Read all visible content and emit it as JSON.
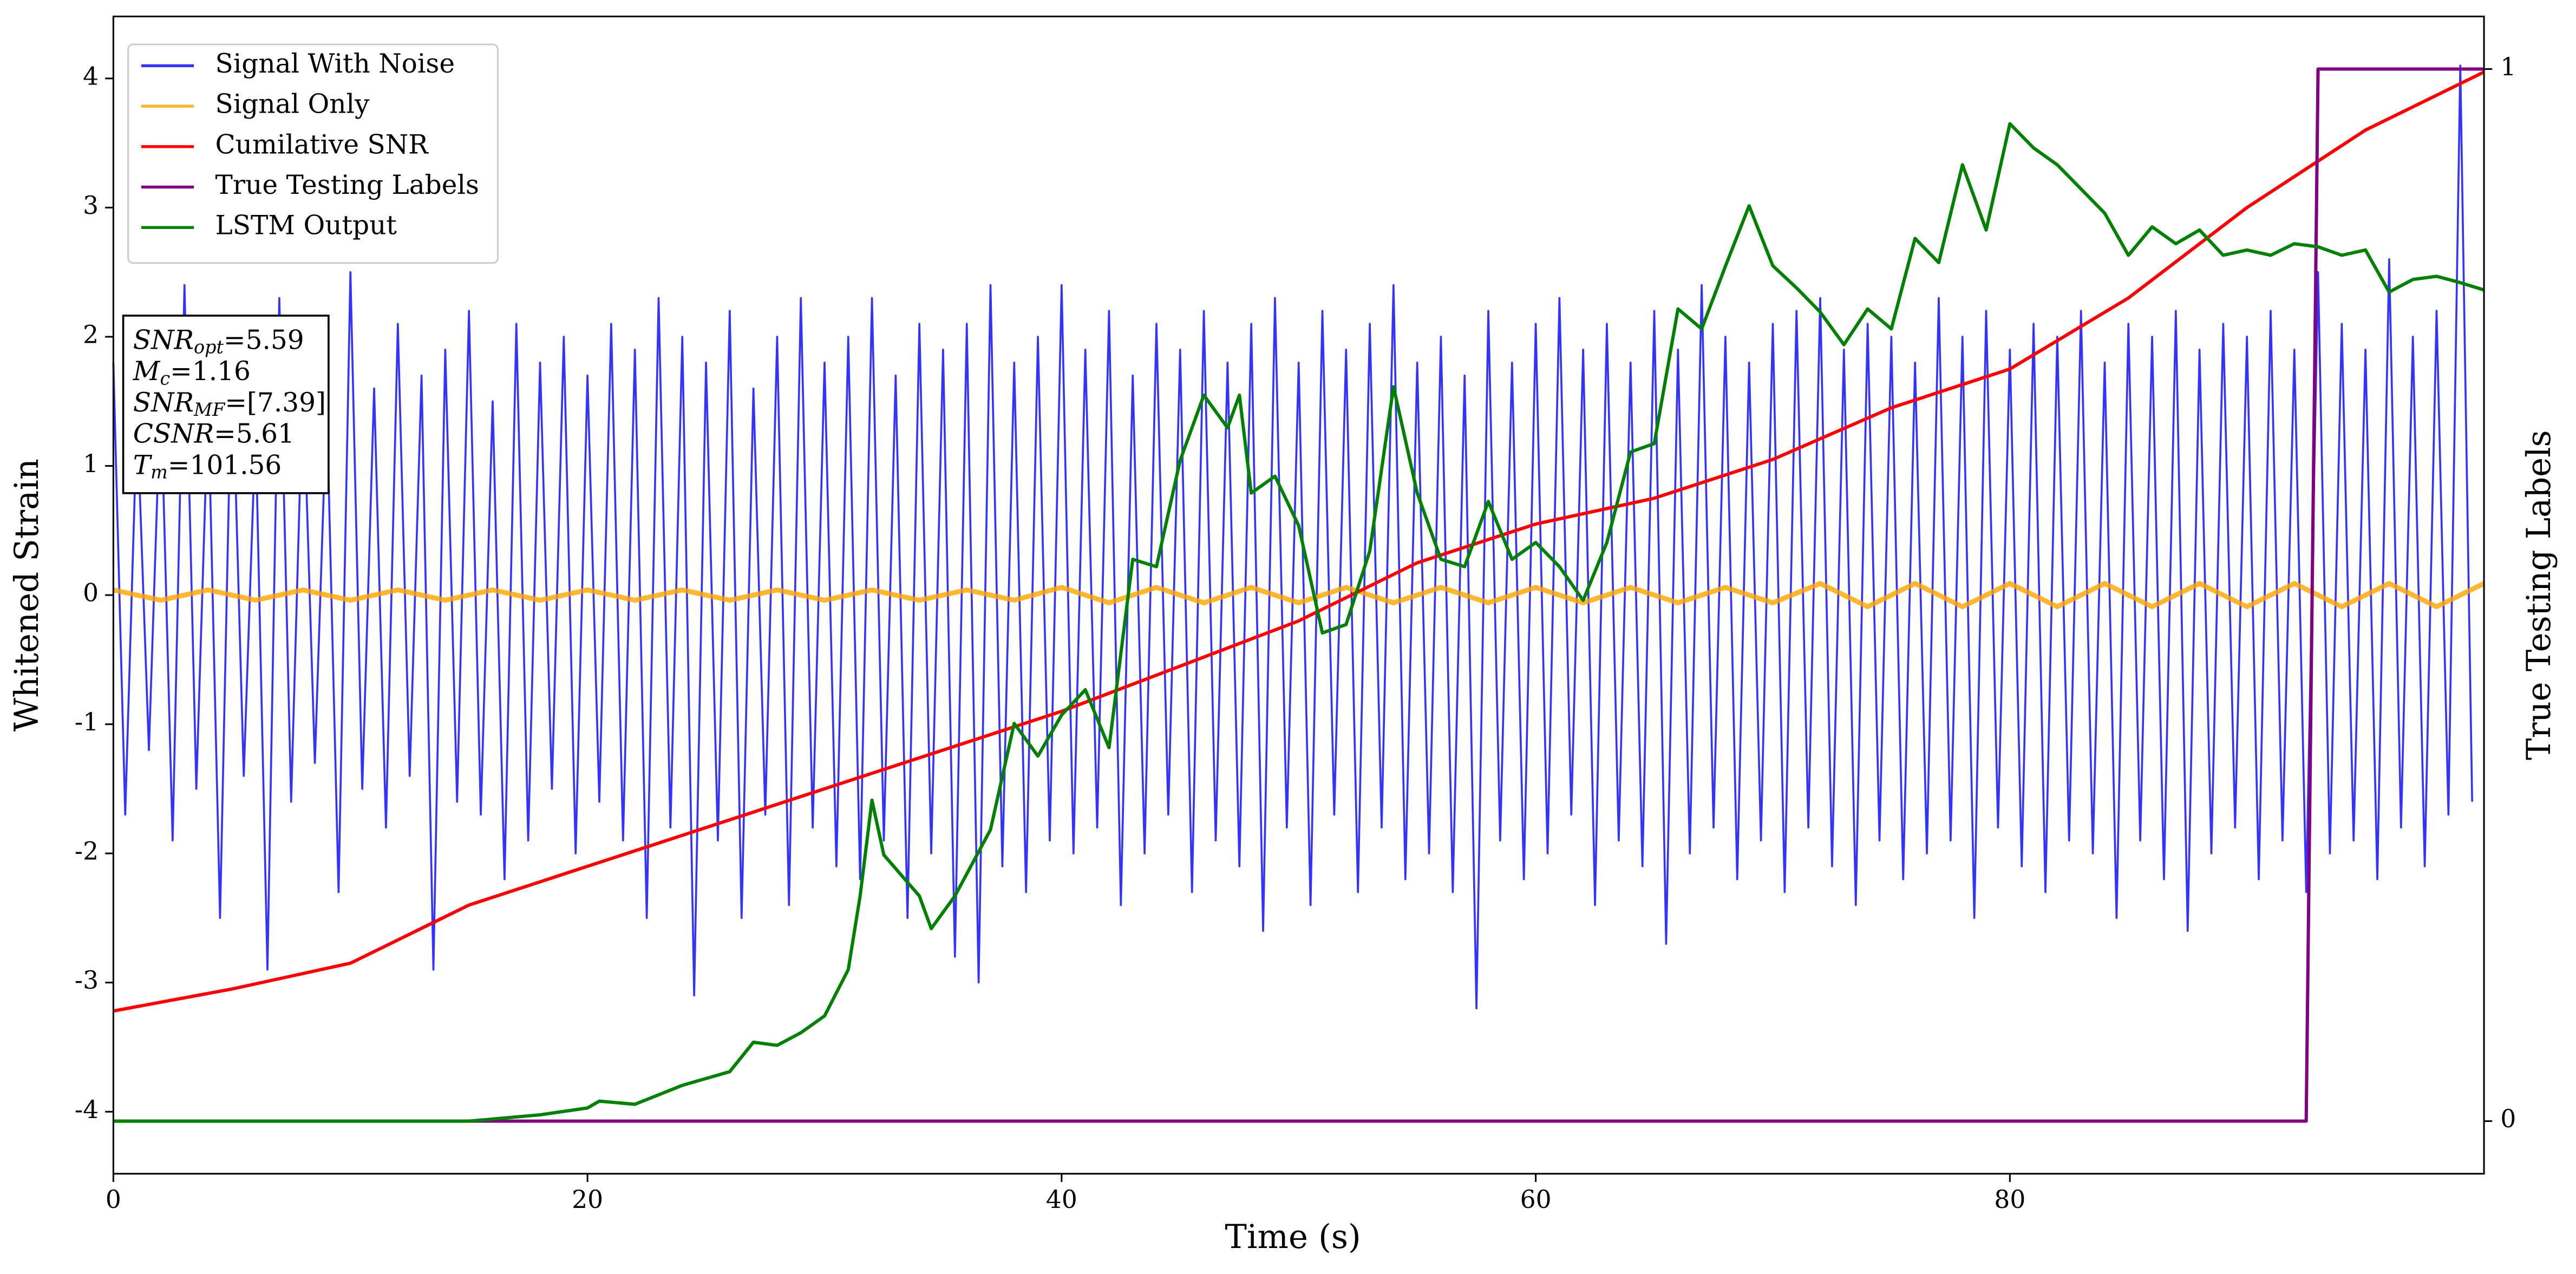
{
  "chart_data": {
    "type": "line",
    "x_label": "Time (s)",
    "y_label": "Whitened Strain",
    "y2_label": "True Testing Labels",
    "xlim": [
      0,
      100
    ],
    "ylim": [
      -4.48,
      4.48
    ],
    "y2lim": [
      -0.05,
      1.05
    ],
    "xticks": [
      0,
      20,
      40,
      60,
      80
    ],
    "yticks": [
      -4,
      -3,
      -2,
      -1,
      0,
      1,
      2,
      3,
      4
    ],
    "y2ticks": [
      0,
      1
    ],
    "legend": "upper-left",
    "annotation": [
      {
        "symbol": "SNR",
        "subscript": "opt",
        "rest": "=5.59"
      },
      {
        "symbol": "M",
        "subscript": "c",
        "rest": "=1.16"
      },
      {
        "symbol": "SNR",
        "subscript": "MF",
        "rest": "=[7.39]"
      },
      {
        "symbol": "CSNR",
        "rest": "=5.61"
      },
      {
        "symbol": "T",
        "subscript": "m",
        "rest": "=101.56"
      }
    ],
    "series": [
      {
        "name": "Signal With Noise",
        "color": "#0000ff",
        "opacity": 0.8,
        "width": 1.2,
        "x": [
          0,
          0.5,
          1,
          1.5,
          2,
          2.5,
          3,
          3.5,
          4,
          4.5,
          5,
          5.5,
          6,
          6.5,
          7,
          7.5,
          8,
          8.5,
          9,
          9.5,
          10,
          10.5,
          11,
          11.5,
          12,
          12.5,
          13,
          13.5,
          14,
          14.5,
          15,
          15.5,
          16,
          16.5,
          17,
          17.5,
          18,
          18.5,
          19,
          19.5,
          20,
          20.5,
          21,
          21.5,
          22,
          22.5,
          23,
          23.5,
          24,
          24.5,
          25,
          25.5,
          26,
          26.5,
          27,
          27.5,
          28,
          28.5,
          29,
          29.5,
          30,
          30.5,
          31,
          31.5,
          32,
          32.5,
          33,
          33.5,
          34,
          34.5,
          35,
          35.5,
          36,
          36.5,
          37,
          37.5,
          38,
          38.5,
          39,
          39.5,
          40,
          40.5,
          41,
          41.5,
          42,
          42.5,
          43,
          43.5,
          44,
          44.5,
          45,
          45.5,
          46,
          46.5,
          47,
          47.5,
          48,
          48.5,
          49,
          49.5,
          50,
          50.5,
          51,
          51.5,
          52,
          52.5,
          53,
          53.5,
          54,
          54.5,
          55,
          55.5,
          56,
          56.5,
          57,
          57.5,
          58,
          58.5,
          59,
          59.5,
          60,
          60.5,
          61,
          61.5,
          62,
          62.5,
          63,
          63.5,
          64,
          64.5,
          65,
          65.5,
          66,
          66.5,
          67,
          67.5,
          68,
          68.5,
          69,
          69.5,
          70,
          70.5,
          71,
          71.5,
          72,
          72.5,
          73,
          73.5,
          74,
          74.5,
          75,
          75.5,
          76,
          76.5,
          77,
          77.5,
          78,
          78.5,
          79,
          79.5,
          80,
          80.5,
          81,
          81.5,
          82,
          82.5,
          83,
          83.5,
          84,
          84.5,
          85,
          85.5,
          86,
          86.5,
          87,
          87.5,
          88,
          88.5,
          89,
          89.5,
          90,
          90.5,
          91,
          91.5,
          92,
          92.5,
          93,
          93.5,
          94,
          94.5,
          95,
          95.5,
          96,
          96.5,
          97,
          97.5,
          98,
          98.5,
          99,
          99.5
        ],
        "values": [
          1.8,
          -1.7,
          1.4,
          -1.2,
          1.6,
          -1.9,
          2.4,
          -1.5,
          1.5,
          -2.5,
          1.9,
          -1.4,
          1.3,
          -2.9,
          2.3,
          -1.6,
          1.7,
          -1.3,
          1.5,
          -2.3,
          2.5,
          -1.5,
          1.6,
          -1.8,
          2.1,
          -1.4,
          1.7,
          -2.9,
          1.9,
          -1.6,
          2.2,
          -1.7,
          1.5,
          -2.2,
          2.1,
          -1.9,
          1.8,
          -1.5,
          2.0,
          -2.0,
          1.7,
          -1.6,
          2.1,
          -1.9,
          1.9,
          -2.5,
          2.3,
          -1.8,
          2.0,
          -3.1,
          1.8,
          -1.9,
          2.2,
          -2.5,
          1.6,
          -1.7,
          2.0,
          -2.4,
          2.3,
          -1.8,
          1.8,
          -2.1,
          2.0,
          -2.2,
          2.3,
          -1.9,
          1.7,
          -2.5,
          2.1,
          -2.0,
          1.9,
          -2.8,
          2.1,
          -3.0,
          2.4,
          -2.1,
          1.8,
          -2.3,
          2.0,
          -1.9,
          2.4,
          -2.0,
          1.9,
          -1.8,
          2.2,
          -2.4,
          1.7,
          -2.0,
          2.1,
          -1.7,
          1.9,
          -2.3,
          2.2,
          -1.9,
          1.8,
          -2.1,
          2.1,
          -2.6,
          2.3,
          -1.8,
          1.8,
          -2.4,
          2.2,
          -1.7,
          1.9,
          -2.3,
          2.1,
          -1.8,
          2.4,
          -2.2,
          1.8,
          -2.0,
          2.0,
          -2.3,
          1.7,
          -3.2,
          2.2,
          -1.9,
          1.8,
          -2.2,
          2.1,
          -2.0,
          2.3,
          -1.7,
          1.9,
          -2.4,
          2.1,
          -1.9,
          1.8,
          -2.1,
          2.2,
          -2.7,
          1.9,
          -2.0,
          2.4,
          -1.8,
          2.0,
          -2.2,
          1.8,
          -1.9,
          2.1,
          -2.3,
          2.2,
          -1.8,
          2.3,
          -2.1,
          1.9,
          -2.4,
          2.1,
          -1.9,
          2.0,
          -2.2,
          1.8,
          -2.0,
          2.3,
          -1.9,
          2.0,
          -2.5,
          2.2,
          -1.8,
          1.9,
          -2.1,
          2.1,
          -2.3,
          2.0,
          -1.9,
          2.2,
          -2.0,
          1.8,
          -2.5,
          2.1,
          -1.9,
          2.0,
          -2.2,
          2.2,
          -2.6,
          1.9,
          -2.0,
          2.1,
          -1.8,
          2.0,
          -2.2,
          2.2,
          -1.9,
          1.9,
          -2.3,
          2.5,
          -2.0,
          2.1,
          -1.9,
          1.9,
          -2.2,
          2.6,
          -1.8,
          2.0,
          -2.1,
          2.2,
          -1.7,
          4.1,
          -1.6
        ]
      },
      {
        "name": "Signal Only",
        "color": "#ffa500",
        "opacity": 0.8,
        "width": 3,
        "x": [
          0,
          2,
          4,
          6,
          8,
          10,
          12,
          14,
          16,
          18,
          20,
          22,
          24,
          26,
          28,
          30,
          32,
          34,
          36,
          38,
          40,
          42,
          44,
          46,
          48,
          50,
          52,
          54,
          56,
          58,
          60,
          62,
          64,
          66,
          68,
          70,
          72,
          74,
          76,
          78,
          80,
          82,
          84,
          86,
          88,
          90,
          92,
          94,
          96,
          98,
          100
        ],
        "values": [
          0.04,
          -0.04,
          0.04,
          -0.04,
          0.04,
          -0.04,
          0.04,
          -0.04,
          0.04,
          -0.04,
          0.04,
          -0.04,
          0.04,
          -0.04,
          0.04,
          -0.04,
          0.04,
          -0.04,
          0.04,
          -0.04,
          0.06,
          -0.06,
          0.06,
          -0.06,
          0.06,
          -0.06,
          0.06,
          -0.06,
          0.06,
          -0.06,
          0.06,
          -0.06,
          0.06,
          -0.06,
          0.06,
          -0.06,
          0.09,
          -0.09,
          0.09,
          -0.09,
          0.09,
          -0.09,
          0.09,
          -0.09,
          0.09,
          -0.09,
          0.09,
          -0.09,
          0.09,
          -0.09,
          0.09
        ]
      },
      {
        "name": "Cumilative SNR",
        "color": "#ff0000",
        "width": 2,
        "x": [
          0,
          5,
          10,
          15,
          20,
          30,
          40,
          50,
          55,
          60,
          65,
          70,
          75,
          80,
          85,
          90,
          95,
          100
        ],
        "values": [
          -3.22,
          -3.05,
          -2.85,
          -2.4,
          -2.1,
          -1.5,
          -0.9,
          -0.2,
          0.25,
          0.55,
          0.75,
          1.05,
          1.45,
          1.75,
          2.3,
          3.0,
          3.6,
          4.05
        ]
      },
      {
        "name": "True Testing Labels",
        "color": "#800080",
        "width": 2,
        "axis": "y2",
        "x": [
          0,
          92.5,
          93,
          100
        ],
        "values": [
          0,
          0,
          1,
          1
        ]
      },
      {
        "name": "LSTM Output",
        "color": "#008000",
        "width": 2,
        "axis": "y2",
        "x": [
          0,
          15,
          18,
          20,
          20.5,
          22,
          24,
          26,
          27,
          28,
          29,
          30,
          31,
          31.5,
          32,
          32.5,
          34,
          34.5,
          35.5,
          37,
          38,
          39,
          40,
          41,
          42,
          43,
          44,
          45,
          46,
          47,
          47.5,
          48,
          49,
          50,
          51,
          52,
          53,
          54,
          55,
          56,
          57,
          58,
          59,
          60,
          61,
          62,
          63,
          64,
          65,
          66,
          67,
          68,
          69,
          70,
          71,
          72,
          73,
          74,
          75,
          76,
          77,
          78,
          79,
          80,
          81,
          82,
          83,
          84,
          85,
          86,
          87,
          88,
          89,
          90,
          91,
          92,
          93,
          94,
          95,
          96,
          97,
          98,
          99,
          100
        ],
        "values": [
          0,
          0,
          0.006,
          0.0125,
          0.019,
          0.016,
          0.034,
          0.047,
          0.075,
          0.072,
          0.084,
          0.1,
          0.144,
          0.214,
          0.305,
          0.253,
          0.214,
          0.183,
          0.214,
          0.277,
          0.378,
          0.347,
          0.386,
          0.41,
          0.355,
          0.534,
          0.527,
          0.628,
          0.69,
          0.659,
          0.69,
          0.597,
          0.613,
          0.566,
          0.464,
          0.472,
          0.542,
          0.698,
          0.597,
          0.534,
          0.527,
          0.589,
          0.534,
          0.55,
          0.527,
          0.495,
          0.55,
          0.636,
          0.644,
          0.772,
          0.753,
          0.8125,
          0.87,
          0.813,
          0.792,
          0.769,
          0.738,
          0.772,
          0.753,
          0.839,
          0.816,
          0.909,
          0.847,
          0.948,
          0.925,
          0.909,
          0.886,
          0.863,
          0.823,
          0.85,
          0.834,
          0.847,
          0.823,
          0.828,
          0.823,
          0.834,
          0.831,
          0.823,
          0.828,
          0.788,
          0.8,
          0.803,
          0.797,
          0.79
        ]
      }
    ]
  }
}
